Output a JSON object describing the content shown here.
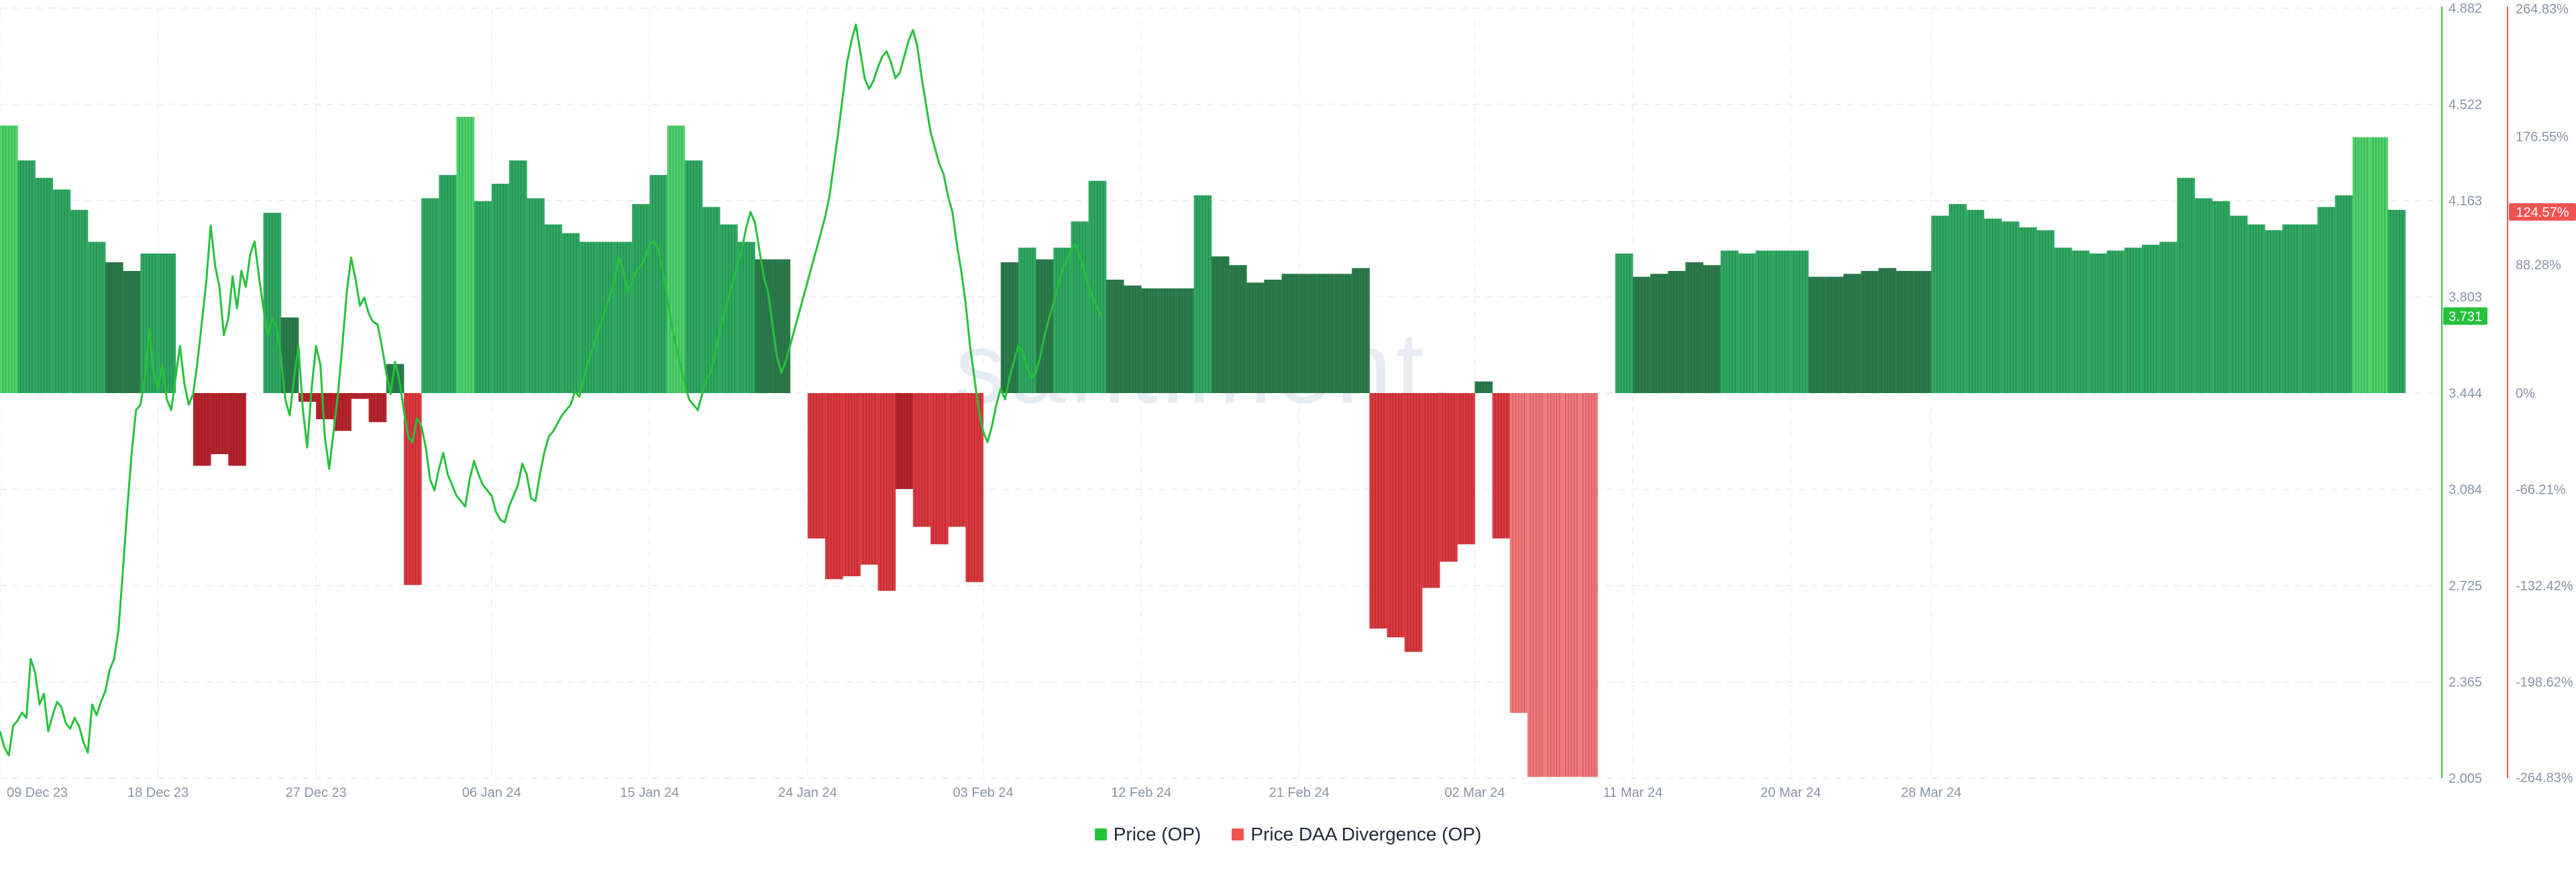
{
  "chart_data": {
    "type": "bar",
    "title": "",
    "watermark": "santiment.",
    "x_ticks": [
      "09 Dec 23",
      "18 Dec 23",
      "27 Dec 23",
      "06 Jan 24",
      "15 Jan 24",
      "24 Jan 24",
      "03 Feb 24",
      "12 Feb 24",
      "21 Feb 24",
      "02 Mar 24",
      "11 Mar 24",
      "20 Mar 24",
      "28 Mar 24"
    ],
    "y_left": {
      "label": "",
      "ticks": [
        "4.882",
        "4.522",
        "4.163",
        "3.803",
        "3.444",
        "3.084",
        "2.725",
        "2.365",
        "2.005"
      ],
      "min": 2.005,
      "max": 4.882,
      "current_value": "3.731",
      "current": 3.731
    },
    "y_right": {
      "label": "",
      "ticks": [
        "264.83%",
        "176.55%",
        "88.28%",
        "0%",
        "-66.21%",
        "-132.42%",
        "-198.62%",
        "-264.83%"
      ],
      "tick_values": [
        264.83,
        176.55,
        88.28,
        0,
        -66.21,
        -132.42,
        -198.62,
        -264.83
      ],
      "min": -264.83,
      "max": 264.83,
      "current_value": "124.57%",
      "current": 124.57
    },
    "series": [
      {
        "name": "Price (OP)",
        "kind": "line",
        "color": "#26c13b",
        "x_start": "2023-12-09",
        "step_days": 0.25,
        "values": [
          2.18,
          2.12,
          2.09,
          2.2,
          2.22,
          2.25,
          2.23,
          2.45,
          2.4,
          2.28,
          2.32,
          2.18,
          2.24,
          2.29,
          2.27,
          2.21,
          2.19,
          2.23,
          2.2,
          2.14,
          2.1,
          2.28,
          2.24,
          2.29,
          2.33,
          2.41,
          2.45,
          2.56,
          2.78,
          3.01,
          3.22,
          3.38,
          3.4,
          3.5,
          3.68,
          3.52,
          3.46,
          3.55,
          3.42,
          3.38,
          3.5,
          3.62,
          3.48,
          3.4,
          3.44,
          3.56,
          3.71,
          3.86,
          4.07,
          3.92,
          3.84,
          3.66,
          3.72,
          3.88,
          3.76,
          3.9,
          3.84,
          3.96,
          4.01,
          3.88,
          3.76,
          3.66,
          3.72,
          3.69,
          3.58,
          3.42,
          3.36,
          3.5,
          3.62,
          3.38,
          3.24,
          3.46,
          3.62,
          3.55,
          3.28,
          3.16,
          3.3,
          3.44,
          3.62,
          3.82,
          3.95,
          3.87,
          3.77,
          3.8,
          3.74,
          3.71,
          3.7,
          3.62,
          3.52,
          3.44,
          3.56,
          3.49,
          3.38,
          3.28,
          3.26,
          3.35,
          3.32,
          3.24,
          3.12,
          3.08,
          3.16,
          3.22,
          3.14,
          3.1,
          3.06,
          3.04,
          3.02,
          3.12,
          3.19,
          3.14,
          3.1,
          3.08,
          3.06,
          3.0,
          2.97,
          2.96,
          3.02,
          3.06,
          3.1,
          3.18,
          3.14,
          3.05,
          3.04,
          3.14,
          3.22,
          3.28,
          3.3,
          3.33,
          3.36,
          3.38,
          3.4,
          3.45,
          3.43,
          3.5,
          3.56,
          3.61,
          3.66,
          3.71,
          3.76,
          3.81,
          3.86,
          3.95,
          3.9,
          3.82,
          3.86,
          3.9,
          3.92,
          3.95,
          4.0,
          4.01,
          3.98,
          3.9,
          3.8,
          3.7,
          3.62,
          3.55,
          3.48,
          3.42,
          3.4,
          3.38,
          3.44,
          3.5,
          3.52,
          3.6,
          3.68,
          3.74,
          3.8,
          3.86,
          3.92,
          3.98,
          4.06,
          4.12,
          4.08,
          3.98,
          3.88,
          3.82,
          3.7,
          3.58,
          3.52,
          3.56,
          3.62,
          3.68,
          3.74,
          3.8,
          3.86,
          3.92,
          3.98,
          4.04,
          4.1,
          4.18,
          4.3,
          4.42,
          4.55,
          4.68,
          4.76,
          4.82,
          4.72,
          4.62,
          4.58,
          4.61,
          4.66,
          4.7,
          4.72,
          4.68,
          4.62,
          4.64,
          4.7,
          4.76,
          4.8,
          4.74,
          4.62,
          4.52,
          4.42,
          4.36,
          4.3,
          4.26,
          4.18,
          4.12,
          4.0,
          3.9,
          3.78,
          3.62,
          3.5,
          3.38,
          3.3,
          3.26,
          3.32,
          3.4,
          3.46,
          3.42,
          3.5,
          3.56,
          3.62,
          3.6,
          3.54,
          3.5,
          3.52,
          3.58,
          3.66,
          3.72,
          3.78,
          3.84,
          3.9,
          3.94,
          3.98,
          4.0,
          3.96,
          3.9,
          3.84,
          3.8,
          3.76,
          3.73
        ]
      },
      {
        "name": "Price DAA Divergence (OP)",
        "kind": "bar",
        "color_positive": "#2fa862",
        "color_negative": "#d93a40",
        "x_start": "2023-12-09",
        "step_days": 1,
        "values": [
          184,
          160,
          148,
          140,
          126,
          104,
          90,
          84,
          96,
          96,
          0,
          -50,
          -42,
          -50,
          0,
          124,
          52,
          -6,
          -18,
          -26,
          -4,
          -20,
          20,
          -132,
          134,
          150,
          190,
          132,
          144,
          160,
          134,
          116,
          110,
          104,
          104,
          104,
          130,
          150,
          184,
          160,
          128,
          116,
          104,
          92,
          92,
          0,
          -100,
          -128,
          -126,
          -118,
          -136,
          -66,
          -92,
          -104,
          -92,
          -130,
          0,
          90,
          100,
          92,
          100,
          118,
          146,
          78,
          74,
          72,
          72,
          72,
          136,
          94,
          88,
          76,
          78,
          82,
          82,
          82,
          82,
          86,
          -162,
          -168,
          -178,
          -134,
          -116,
          -104,
          8,
          -100,
          -220,
          -264,
          -264,
          -264,
          -264,
          0,
          96,
          80,
          82,
          84,
          90,
          88,
          98,
          96,
          98,
          98,
          98,
          80,
          80,
          82,
          84,
          86,
          84,
          84,
          122,
          130,
          126,
          120,
          118,
          114,
          112,
          100,
          98,
          96,
          98,
          100,
          102,
          104,
          148,
          134,
          132,
          122,
          116,
          112,
          116,
          116,
          128,
          136,
          176,
          176,
          126
        ]
      }
    ]
  },
  "ui": {
    "left_axis_color": "#26c13b",
    "right_axis_color": "#ef5350",
    "left_badge_color": "#26c13b",
    "right_badge_color": "#ef5350"
  }
}
